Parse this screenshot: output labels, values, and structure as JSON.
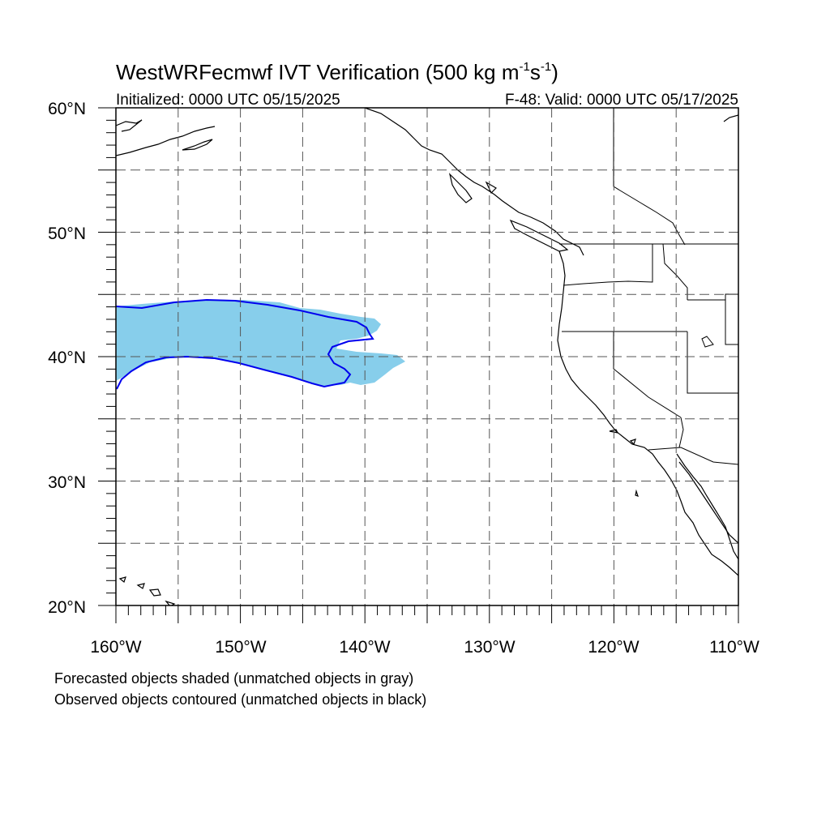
{
  "title": {
    "text_main": "WestWRFecmwf IVT Verification (500 kg m",
    "sup1": "-1",
    "text_s": "s",
    "sup2": "-1",
    "text_end": ")"
  },
  "subtitle_left": "Initialized: 0000 UTC 05/15/2025",
  "subtitle_right": "F-48: Valid: 0000 UTC 05/17/2025",
  "lat_labels": [
    "60°N",
    "50°N",
    "40°N",
    "30°N",
    "20°N"
  ],
  "lon_labels": [
    "160°W",
    "150°W",
    "140°W",
    "130°W",
    "120°W",
    "110°W"
  ],
  "legend": {
    "line1": "Forecasted objects shaded (unmatched objects in gray)",
    "line2": "Observed objects contoured (unmatched objects in black)"
  },
  "map": {
    "lon_range": [
      -160,
      -110
    ],
    "lat_range": [
      20,
      60
    ],
    "grid": "dashed, every 5 degrees",
    "colors": {
      "forecast_fill": "#87ceeb",
      "observed_contour": "#0000ee",
      "coastline": "#000000",
      "grid": "#555555"
    }
  }
}
